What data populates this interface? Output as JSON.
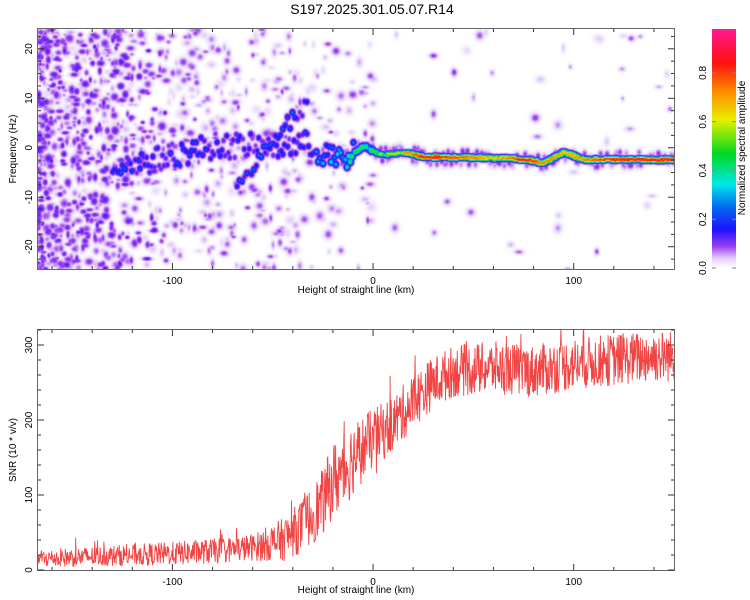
{
  "figure_title": "S197.2025.301.05.07.R14",
  "chart_data": [
    {
      "type": "heatmap",
      "title": "S197.2025.301.05.07.R14",
      "xlabel": "Height of straight line (km)",
      "ylabel": "Frequency (Hz)",
      "xlim": [
        -167,
        150
      ],
      "ylim": [
        -24.5,
        24
      ],
      "x_ticks": [
        -100,
        0,
        100
      ],
      "x_tick_labels": [
        "-100",
        "0",
        "100"
      ],
      "y_ticks": [
        -20,
        -10,
        0,
        10,
        20
      ],
      "y_tick_labels": [
        "-20",
        "-10",
        "0",
        "10",
        "20"
      ],
      "colorbar": {
        "label": "Normalized spectral amplitude",
        "range": [
          0.0,
          0.98
        ],
        "ticks": [
          0.0,
          0.2,
          0.4,
          0.6,
          0.8
        ],
        "tick_labels": [
          "0.0",
          "0.2",
          "0.4",
          "0.6",
          "0.8"
        ],
        "colormap": [
          "#ffffff",
          "#e0c8f8",
          "#8a2be2",
          "#3a00ff",
          "#0050ff",
          "#00e0f0",
          "#00e000",
          "#f0f000",
          "#ff8000",
          "#ff0000",
          "#ff0080"
        ]
      },
      "ridge": {
        "description": "Dominant frequency line vs height; amplitude normalized",
        "points": [
          {
            "x": -125,
            "freq": -3.5,
            "amp": 0.28
          },
          {
            "x": -110,
            "freq": -2.5,
            "amp": 0.22
          },
          {
            "x": -95,
            "freq": -1.0,
            "amp": 0.25
          },
          {
            "x": -80,
            "freq": 0.5,
            "amp": 0.22
          },
          {
            "x": -65,
            "freq": 0.5,
            "amp": 0.2
          },
          {
            "x": -50,
            "freq": 0.0,
            "amp": 0.2
          },
          {
            "x": -35,
            "freq": 1.0,
            "amp": 0.22
          },
          {
            "x": -25,
            "freq": -1.0,
            "amp": 0.35
          },
          {
            "x": -15,
            "freq": -2.5,
            "amp": 0.45
          },
          {
            "x": -5,
            "freq": 0.5,
            "amp": 0.6
          },
          {
            "x": 5,
            "freq": -1.5,
            "amp": 0.65
          },
          {
            "x": 15,
            "freq": -0.8,
            "amp": 0.75
          },
          {
            "x": 25,
            "freq": -1.8,
            "amp": 0.95
          },
          {
            "x": 45,
            "freq": -1.8,
            "amp": 0.85
          },
          {
            "x": 60,
            "freq": -2.0,
            "amp": 0.7
          },
          {
            "x": 75,
            "freq": -2.2,
            "amp": 0.95
          },
          {
            "x": 85,
            "freq": -3.0,
            "amp": 0.8
          },
          {
            "x": 95,
            "freq": -0.8,
            "amp": 0.75
          },
          {
            "x": 105,
            "freq": -2.3,
            "amp": 0.8
          },
          {
            "x": 125,
            "freq": -2.3,
            "amp": 0.95
          },
          {
            "x": 150,
            "freq": -2.3,
            "amp": 0.95
          }
        ]
      },
      "secondary_branch": {
        "description": "Dispersive branch descending from upper-right to lower-left",
        "points": [
          {
            "x": -35,
            "freq": 8
          },
          {
            "x": -50,
            "freq": 2
          },
          {
            "x": -60,
            "freq": -4
          },
          {
            "x": -68,
            "freq": -8
          }
        ]
      }
    },
    {
      "type": "line",
      "title": "",
      "xlabel": "Height of straight line (km)",
      "ylabel": "SNR (10 * v/v)",
      "xlim": [
        -167,
        150
      ],
      "ylim": [
        0,
        320
      ],
      "x_ticks": [
        -100,
        0,
        100
      ],
      "x_tick_labels": [
        "-100",
        "0",
        "100"
      ],
      "y_ticks": [
        0,
        100,
        200,
        300
      ],
      "y_tick_labels": [
        "0",
        "100",
        "200",
        "300"
      ],
      "color": "#f03030",
      "series": [
        {
          "name": "SNR",
          "trend": {
            "x": [
              -167,
              -140,
              -100,
              -80,
              -60,
              -45,
              -35,
              -25,
              -20,
              -15,
              -10,
              0,
              10,
              20,
              30,
              40,
              60,
              80,
              100,
              120,
              140,
              150
            ],
            "y": [
              15,
              18,
              22,
              25,
              30,
              40,
              60,
              90,
              120,
              130,
              150,
              175,
              195,
              225,
              250,
              265,
              270,
              265,
              275,
              280,
              285,
              285
            ]
          },
          "noise_amplitude": {
            "x": [
              -167,
              -60,
              -30,
              -15,
              0,
              30,
              150
            ],
            "y": [
              12,
              18,
              40,
              55,
              40,
              35,
              35
            ]
          }
        }
      ]
    }
  ]
}
